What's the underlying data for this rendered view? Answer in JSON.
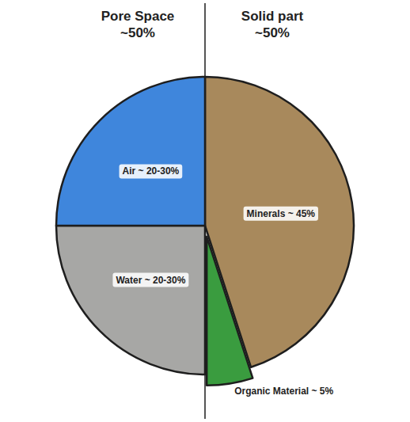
{
  "chart_data": {
    "type": "pie",
    "categories": [
      "Minerals ~ 45%",
      "Organic Material ~ 5%",
      "Water ~ 20-30%",
      "Air ~ 20-30%"
    ],
    "values": [
      45,
      5,
      25,
      25
    ],
    "colors": [
      "#a8895c",
      "#3a9c3f",
      "#a7a7a5",
      "#3f86dc"
    ],
    "annotations": [
      "Pore Space ~50%",
      "Solid part ~50%"
    ]
  }
}
